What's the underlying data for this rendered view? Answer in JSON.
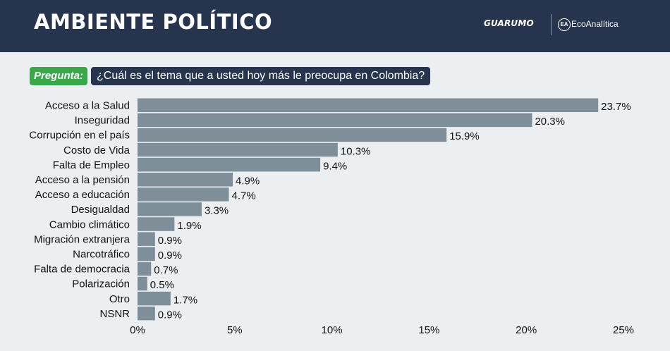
{
  "header": {
    "title": "AMBIENTE POLÍTICO",
    "logo_left": "GUARUMO",
    "logo_right": "EcoAnalítica",
    "logo_right_icon": "EA"
  },
  "question": {
    "label": "Pregunta:",
    "text": "¿Cuál es el tema que a usted hoy más le preocupa en Colombia?"
  },
  "colors": {
    "header_bg": "#26344d",
    "bar": "#7f8f9a",
    "question_label_bg": "#3aa84a"
  },
  "chart_data": {
    "type": "bar",
    "orientation": "horizontal",
    "categories": [
      "Acceso a la Salud",
      "Inseguridad",
      "Corrupción en el país",
      "Costo de Vida",
      "Falta de Empleo",
      "Acceso a la pensión",
      "Acceso a educación",
      "Desigualdad",
      "Cambio climático",
      "Migración extranjera",
      "Narcotráfico",
      "Falta de democracia",
      "Polarización",
      "Otro",
      "NSNR"
    ],
    "values": [
      23.7,
      20.3,
      15.9,
      10.3,
      9.4,
      4.9,
      4.7,
      3.3,
      1.9,
      0.9,
      0.9,
      0.7,
      0.5,
      1.7,
      0.9
    ],
    "value_labels": [
      "23.7%",
      "20.3%",
      "15.9%",
      "10.3%",
      "9.4%",
      "4.9%",
      "4.7%",
      "3.3%",
      "1.9%",
      "0.9%",
      "0.9%",
      "0.7%",
      "0.5%",
      "1.7%",
      "0.9%"
    ],
    "xlim": [
      0,
      25
    ],
    "xticks": [
      0,
      5,
      10,
      15,
      20,
      25
    ],
    "xtick_labels": [
      "0%",
      "5%",
      "10%",
      "15%",
      "20%",
      "25%"
    ],
    "grid": false,
    "legend": "none"
  }
}
